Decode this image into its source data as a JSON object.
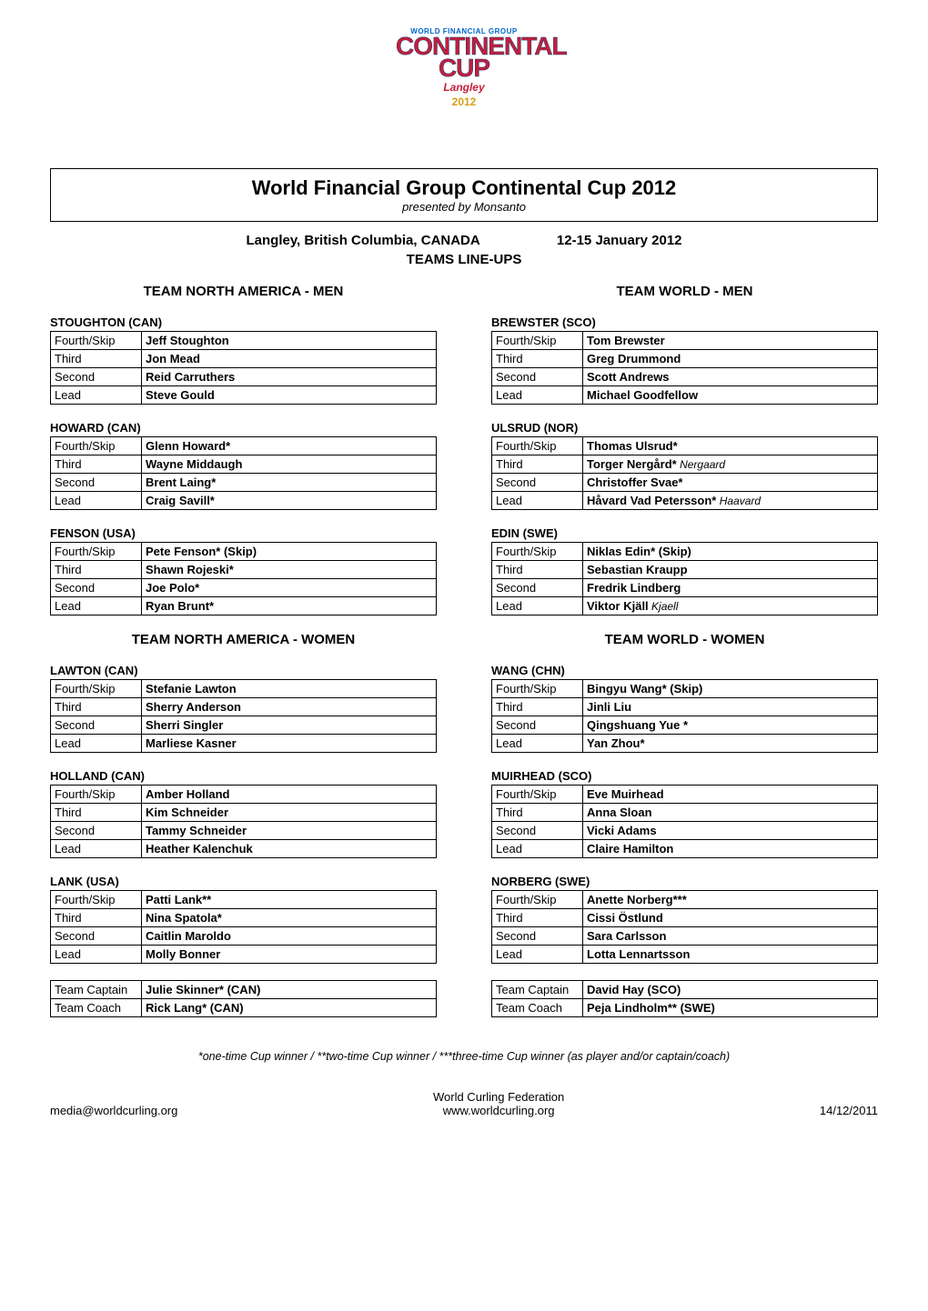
{
  "logo": {
    "top_text": "WORLD FINANCIAL GROUP",
    "main_line1": "Continental",
    "main_line2": "Cup",
    "bottom_text": "Langley",
    "year": "2012"
  },
  "header": {
    "title": "World Financial Group Continental Cup 2012",
    "subtitle": "presented by Monsanto",
    "location": "Langley, British Columbia, CANADA",
    "dates": "12-15 January 2012",
    "section": "TEAMS LINE-UPS"
  },
  "north_america": {
    "men_heading": "TEAM NORTH AMERICA - MEN",
    "women_heading": "TEAM NORTH AMERICA - WOMEN",
    "men": [
      {
        "name": "STOUGHTON (CAN)",
        "players": [
          {
            "pos": "Fourth/Skip",
            "name": "Jeff Stoughton"
          },
          {
            "pos": "Third",
            "name": "Jon Mead"
          },
          {
            "pos": "Second",
            "name": "Reid Carruthers"
          },
          {
            "pos": "Lead",
            "name": "Steve Gould"
          }
        ]
      },
      {
        "name": "HOWARD (CAN)",
        "players": [
          {
            "pos": "Fourth/Skip",
            "name": "Glenn Howard*"
          },
          {
            "pos": "Third",
            "name": "Wayne Middaugh"
          },
          {
            "pos": "Second",
            "name": "Brent Laing*"
          },
          {
            "pos": "Lead",
            "name": "Craig Savill*"
          }
        ]
      },
      {
        "name": "FENSON (USA)",
        "players": [
          {
            "pos": "Fourth/Skip",
            "name": "Pete Fenson* (Skip)"
          },
          {
            "pos": "Third",
            "name": "Shawn Rojeski*"
          },
          {
            "pos": "Second",
            "name": "Joe Polo*"
          },
          {
            "pos": "Lead",
            "name": "Ryan Brunt*"
          }
        ]
      }
    ],
    "women": [
      {
        "name": "LAWTON (CAN)",
        "players": [
          {
            "pos": "Fourth/Skip",
            "name": "Stefanie Lawton"
          },
          {
            "pos": "Third",
            "name": "Sherry Anderson"
          },
          {
            "pos": "Second",
            "name": "Sherri Singler"
          },
          {
            "pos": "Lead",
            "name": "Marliese Kasner"
          }
        ]
      },
      {
        "name": "HOLLAND (CAN)",
        "players": [
          {
            "pos": "Fourth/Skip",
            "name": "Amber Holland"
          },
          {
            "pos": "Third",
            "name": "Kim Schneider"
          },
          {
            "pos": "Second",
            "name": "Tammy Schneider"
          },
          {
            "pos": "Lead",
            "name": "Heather Kalenchuk"
          }
        ]
      },
      {
        "name": "LANK (USA)",
        "players": [
          {
            "pos": "Fourth/Skip",
            "name": "Patti Lank**"
          },
          {
            "pos": "Third",
            "name": "Nina Spatola*"
          },
          {
            "pos": "Second",
            "name": "Caitlin Maroldo"
          },
          {
            "pos": "Lead",
            "name": "Molly Bonner"
          }
        ]
      }
    ],
    "staff": [
      {
        "pos": "Team Captain",
        "name": "Julie Skinner* (CAN)"
      },
      {
        "pos": "Team Coach",
        "name": "Rick Lang* (CAN)"
      }
    ]
  },
  "world": {
    "men_heading": "TEAM WORLD - MEN",
    "women_heading": "TEAM WORLD - WOMEN",
    "men": [
      {
        "name": "BREWSTER (SCO)",
        "players": [
          {
            "pos": "Fourth/Skip",
            "name": "Tom Brewster"
          },
          {
            "pos": "Third",
            "name": "Greg Drummond"
          },
          {
            "pos": "Second",
            "name": "Scott Andrews"
          },
          {
            "pos": "Lead",
            "name": "Michael Goodfellow"
          }
        ]
      },
      {
        "name": "ULSRUD (NOR)",
        "players": [
          {
            "pos": "Fourth/Skip",
            "name": "Thomas Ulsrud*"
          },
          {
            "pos": "Third",
            "name": "Torger Nergård*",
            "alt": "Nergaard"
          },
          {
            "pos": "Second",
            "name": "Christoffer Svae*"
          },
          {
            "pos": "Lead",
            "name": "Håvard Vad Petersson*",
            "alt": "Haavard"
          }
        ]
      },
      {
        "name": "EDIN (SWE)",
        "players": [
          {
            "pos": "Fourth/Skip",
            "name": "Niklas Edin* (Skip)"
          },
          {
            "pos": "Third",
            "name": "Sebastian Kraupp"
          },
          {
            "pos": "Second",
            "name": "Fredrik Lindberg"
          },
          {
            "pos": "Lead",
            "name": "Viktor Kjäll",
            "alt": "Kjaell"
          }
        ]
      }
    ],
    "women": [
      {
        "name": "WANG (CHN)",
        "players": [
          {
            "pos": "Fourth/Skip",
            "name": "Bingyu Wang* (Skip)"
          },
          {
            "pos": "Third",
            "name": "Jinli Liu"
          },
          {
            "pos": "Second",
            "name": "Qingshuang Yue *"
          },
          {
            "pos": "Lead",
            "name": "Yan Zhou*"
          }
        ]
      },
      {
        "name": "MUIRHEAD (SCO)",
        "players": [
          {
            "pos": "Fourth/Skip",
            "name": "Eve Muirhead"
          },
          {
            "pos": "Third",
            "name": "Anna Sloan"
          },
          {
            "pos": "Second",
            "name": "Vicki Adams"
          },
          {
            "pos": "Lead",
            "name": "Claire Hamilton"
          }
        ]
      },
      {
        "name": "NORBERG (SWE)",
        "players": [
          {
            "pos": "Fourth/Skip",
            "name": "Anette Norberg***"
          },
          {
            "pos": "Third",
            "name": "Cissi Östlund"
          },
          {
            "pos": "Second",
            "name": "Sara Carlsson"
          },
          {
            "pos": "Lead",
            "name": "Lotta Lennartsson"
          }
        ]
      }
    ],
    "staff": [
      {
        "pos": "Team Captain",
        "name": "David Hay (SCO)"
      },
      {
        "pos": "Team Coach",
        "name": "Peja Lindholm** (SWE)"
      }
    ]
  },
  "footnote": "*one-time Cup winner  /  **two-time Cup winner  /  ***three-time Cup winner   (as player and/or captain/coach)",
  "footer": {
    "email": "media@worldcurling.org",
    "org": "World Curling Federation",
    "url": "www.worldcurling.org",
    "date": "14/12/2011"
  }
}
